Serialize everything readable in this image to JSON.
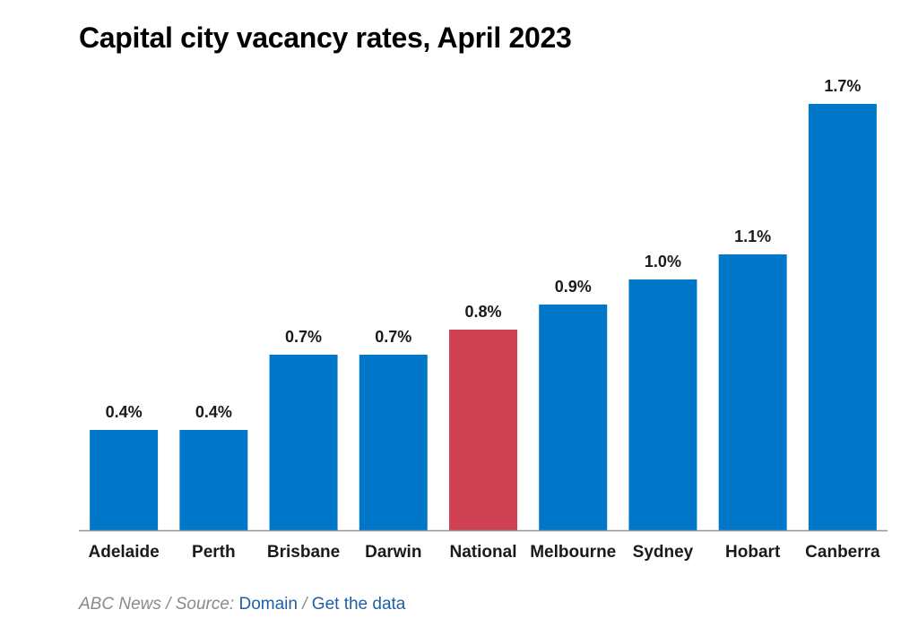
{
  "chart_data": {
    "type": "bar",
    "title": "Capital city vacancy rates, April 2023",
    "xlabel": "",
    "ylabel": "",
    "categories": [
      "Adelaide",
      "Perth",
      "Brisbane",
      "Darwin",
      "National",
      "Melbourne",
      "Sydney",
      "Hobart",
      "Canberra"
    ],
    "values": [
      0.4,
      0.4,
      0.7,
      0.7,
      0.8,
      0.9,
      1.0,
      1.1,
      1.7
    ],
    "value_labels": [
      "0.4%",
      "0.4%",
      "0.7%",
      "0.7%",
      "0.8%",
      "0.9%",
      "1.0%",
      "1.1%",
      "1.7%"
    ],
    "highlight_category": "National",
    "ylim": [
      0,
      1.7
    ],
    "grid": false,
    "colors": {
      "bar": "#0077c8",
      "highlight": "#cf4153",
      "axis": "#8c9aa8"
    }
  },
  "footer": {
    "publisher": "ABC News",
    "separator1": " / ",
    "source_label": "Source: ",
    "source_link": "Domain",
    "separator2": " / ",
    "data_link": "Get the data"
  }
}
